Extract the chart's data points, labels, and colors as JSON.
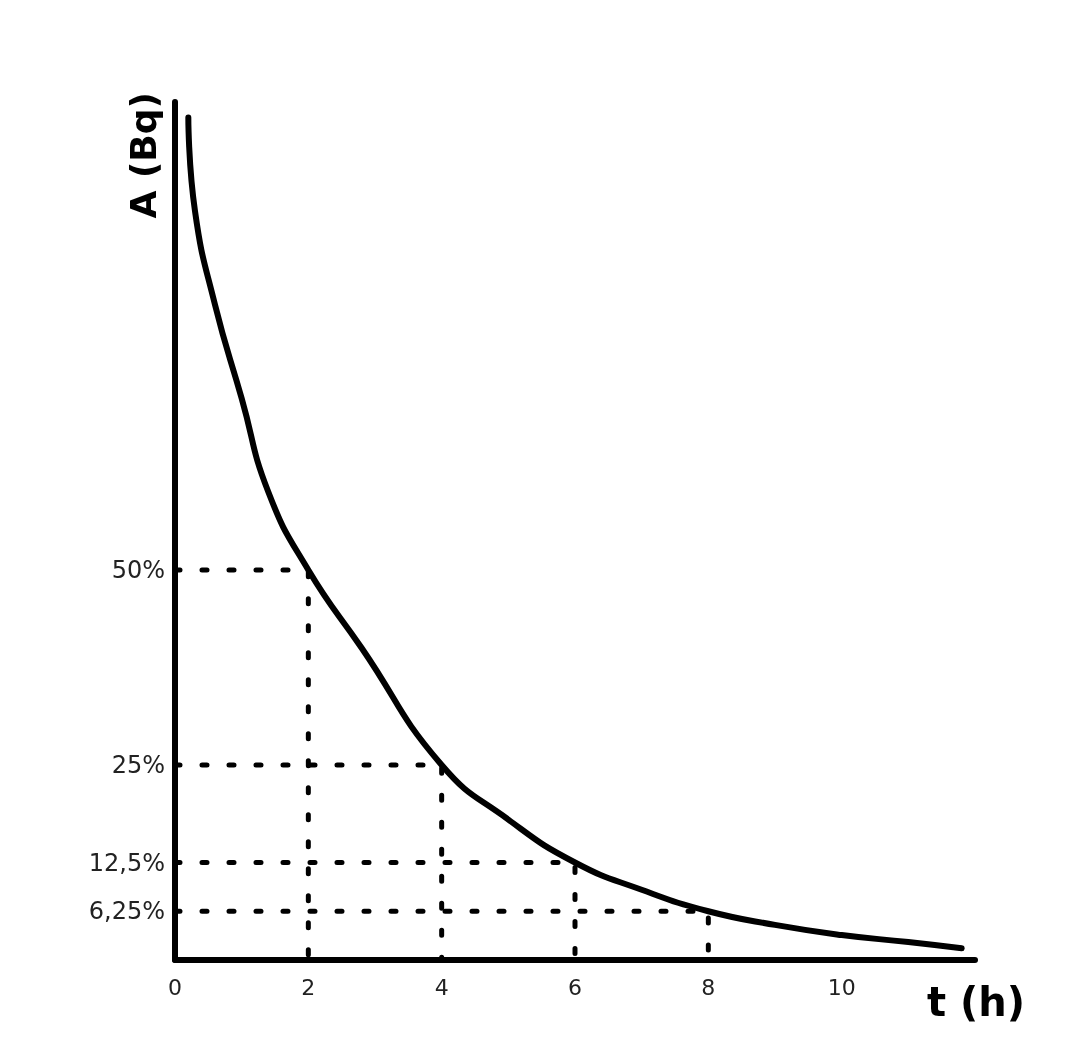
{
  "chart_data": {
    "type": "line",
    "xlabel": "t (h)",
    "ylabel": "A (Bq)",
    "xlim": [
      0,
      12
    ],
    "ylim": [
      0,
      110
    ],
    "xticks": [
      0,
      2,
      4,
      6,
      8,
      10
    ],
    "yticks": [
      {
        "value": 6.25,
        "label": "6,25%"
      },
      {
        "value": 12.5,
        "label": "12,5%"
      },
      {
        "value": 25,
        "label": "25%"
      },
      {
        "value": 50,
        "label": "50%"
      }
    ],
    "marker": "none",
    "series": [
      {
        "color": "#000000",
        "line_style": "solid",
        "x": [
          0.2,
          0.3,
          0.6,
          1,
          1.4,
          2,
          2.8,
          4,
          5,
          6,
          7,
          8,
          9,
          10,
          11,
          11.8
        ],
        "values": [
          108,
          96,
          84,
          72,
          60,
          50,
          40,
          25,
          18,
          12.5,
          9,
          6.25,
          4.5,
          3.2,
          2.3,
          1.5
        ]
      },
      {
        "color": "#000000",
        "line_style": "dotted",
        "x": [
          0,
          2,
          2
        ],
        "values": [
          50,
          50,
          0
        ]
      },
      {
        "color": "#000000",
        "line_style": "dotted",
        "x": [
          0,
          4,
          4
        ],
        "values": [
          25,
          25,
          0
        ]
      },
      {
        "color": "#000000",
        "line_style": "dotted",
        "x": [
          0,
          6,
          6
        ],
        "values": [
          12.5,
          12.5,
          0
        ]
      },
      {
        "color": "#000000",
        "line_style": "dotted",
        "x": [
          0,
          8,
          8
        ],
        "values": [
          6.25,
          6.25,
          0
        ]
      }
    ]
  }
}
